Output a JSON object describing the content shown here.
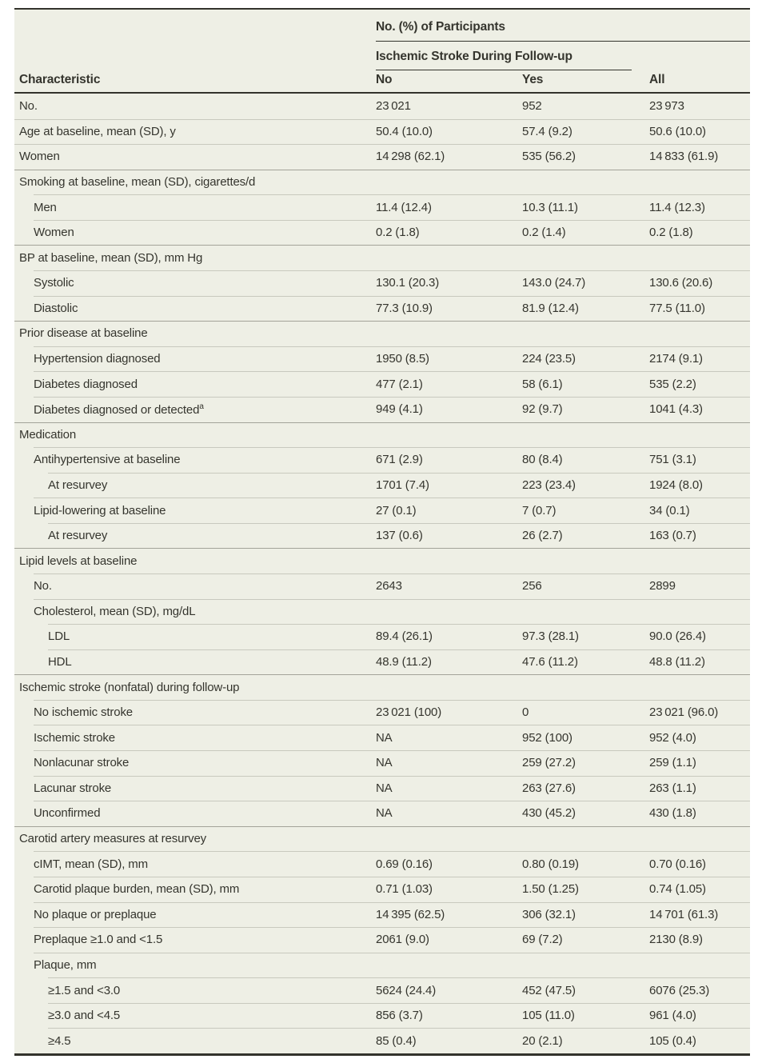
{
  "table": {
    "header": {
      "group_label": "No. (%) of Participants",
      "subgroup_label": "Ischemic Stroke During Follow-up",
      "characteristic_label": "Characteristic",
      "columns": [
        "No",
        "Yes",
        "All"
      ]
    },
    "rows": [
      {
        "label": "No.",
        "indent": 0,
        "section": false,
        "values": [
          "23 021",
          "952",
          "23 973"
        ]
      },
      {
        "label": "Age at baseline, mean (SD), y",
        "indent": 0,
        "section": false,
        "values": [
          "50.4 (10.0)",
          "57.4 (9.2)",
          "50.6 (10.0)"
        ]
      },
      {
        "label": "Women",
        "indent": 0,
        "section": false,
        "values": [
          "14 298 (62.1)",
          "535 (56.2)",
          "14 833 (61.9)"
        ]
      },
      {
        "label": "Smoking at baseline, mean (SD), cigarettes/d",
        "indent": 0,
        "section": true,
        "values": [
          "",
          "",
          ""
        ]
      },
      {
        "label": "Men",
        "indent": 1,
        "section": false,
        "values": [
          "11.4 (12.4)",
          "10.3 (11.1)",
          "11.4 (12.3)"
        ]
      },
      {
        "label": "Women",
        "indent": 1,
        "section": false,
        "values": [
          "0.2 (1.8)",
          "0.2 (1.4)",
          "0.2 (1.8)"
        ]
      },
      {
        "label": "BP at baseline, mean (SD), mm Hg",
        "indent": 0,
        "section": true,
        "values": [
          "",
          "",
          ""
        ]
      },
      {
        "label": "Systolic",
        "indent": 1,
        "section": false,
        "values": [
          "130.1 (20.3)",
          "143.0 (24.7)",
          "130.6 (20.6)"
        ]
      },
      {
        "label": "Diastolic",
        "indent": 1,
        "section": false,
        "values": [
          "77.3 (10.9)",
          "81.9 (12.4)",
          "77.5 (11.0)"
        ]
      },
      {
        "label": "Prior disease at baseline",
        "indent": 0,
        "section": true,
        "values": [
          "",
          "",
          ""
        ]
      },
      {
        "label": "Hypertension diagnosed",
        "indent": 1,
        "section": false,
        "values": [
          "1950 (8.5)",
          "224 (23.5)",
          "2174 (9.1)"
        ]
      },
      {
        "label": "Diabetes diagnosed",
        "indent": 1,
        "section": false,
        "values": [
          "477 (2.1)",
          "58 (6.1)",
          "535 (2.2)"
        ]
      },
      {
        "label": "Diabetes diagnosed or detected",
        "sup": "a",
        "indent": 1,
        "section": false,
        "values": [
          "949 (4.1)",
          "92 (9.7)",
          "1041 (4.3)"
        ]
      },
      {
        "label": "Medication",
        "indent": 0,
        "section": true,
        "values": [
          "",
          "",
          ""
        ]
      },
      {
        "label": "Antihypertensive at baseline",
        "indent": 1,
        "section": false,
        "values": [
          "671 (2.9)",
          "80 (8.4)",
          "751 (3.1)"
        ]
      },
      {
        "label": "At resurvey",
        "indent": 2,
        "section": false,
        "values": [
          "1701 (7.4)",
          "223 (23.4)",
          "1924 (8.0)"
        ]
      },
      {
        "label": "Lipid-lowering at baseline",
        "indent": 1,
        "section": false,
        "values": [
          "27 (0.1)",
          "7 (0.7)",
          "34 (0.1)"
        ]
      },
      {
        "label": "At resurvey",
        "indent": 2,
        "section": false,
        "values": [
          "137 (0.6)",
          "26 (2.7)",
          "163 (0.7)"
        ]
      },
      {
        "label": "Lipid levels at baseline",
        "indent": 0,
        "section": true,
        "values": [
          "",
          "",
          ""
        ]
      },
      {
        "label": "No.",
        "indent": 1,
        "section": false,
        "values": [
          "2643",
          "256",
          "2899"
        ]
      },
      {
        "label": "Cholesterol, mean (SD), mg/dL",
        "indent": 1,
        "section": false,
        "values": [
          "",
          "",
          ""
        ]
      },
      {
        "label": "LDL",
        "indent": 2,
        "section": false,
        "values": [
          "89.4 (26.1)",
          "97.3 (28.1)",
          "90.0 (26.4)"
        ]
      },
      {
        "label": "HDL",
        "indent": 2,
        "section": false,
        "values": [
          "48.9 (11.2)",
          "47.6 (11.2)",
          "48.8 (11.2)"
        ]
      },
      {
        "label": "Ischemic stroke (nonfatal) during follow-up",
        "indent": 0,
        "section": true,
        "values": [
          "",
          "",
          ""
        ]
      },
      {
        "label": "No ischemic stroke",
        "indent": 1,
        "section": false,
        "values": [
          "23 021 (100)",
          "0",
          "23 021 (96.0)"
        ]
      },
      {
        "label": "Ischemic stroke",
        "indent": 1,
        "section": false,
        "values": [
          "NA",
          "952 (100)",
          "952 (4.0)"
        ]
      },
      {
        "label": "Nonlacunar stroke",
        "indent": 1,
        "section": false,
        "values": [
          "NA",
          "259 (27.2)",
          "259 (1.1)"
        ]
      },
      {
        "label": "Lacunar stroke",
        "indent": 1,
        "section": false,
        "values": [
          "NA",
          "263 (27.6)",
          "263 (1.1)"
        ]
      },
      {
        "label": "Unconfirmed",
        "indent": 1,
        "section": false,
        "values": [
          "NA",
          "430 (45.2)",
          "430 (1.8)"
        ]
      },
      {
        "label": "Carotid artery measures at resurvey",
        "indent": 0,
        "section": true,
        "values": [
          "",
          "",
          ""
        ]
      },
      {
        "label": "cIMT, mean (SD), mm",
        "indent": 1,
        "section": false,
        "values": [
          "0.69 (0.16)",
          "0.80 (0.19)",
          "0.70 (0.16)"
        ]
      },
      {
        "label": "Carotid plaque burden, mean (SD), mm",
        "indent": 1,
        "section": false,
        "values": [
          "0.71 (1.03)",
          "1.50 (1.25)",
          "0.74 (1.05)"
        ]
      },
      {
        "label": "No plaque or preplaque",
        "indent": 1,
        "section": false,
        "values": [
          "14 395 (62.5)",
          "306 (32.1)",
          "14 701 (61.3)"
        ]
      },
      {
        "label": "Preplaque ≥1.0 and <1.5",
        "indent": 1,
        "section": false,
        "values": [
          "2061 (9.0)",
          "69 (7.2)",
          "2130 (8.9)"
        ]
      },
      {
        "label": "Plaque, mm",
        "indent": 1,
        "section": false,
        "values": [
          "",
          "",
          ""
        ]
      },
      {
        "label": "≥1.5 and <3.0",
        "indent": 2,
        "section": false,
        "values": [
          "5624 (24.4)",
          "452 (47.5)",
          "6076 (25.3)"
        ]
      },
      {
        "label": "≥3.0 and <4.5",
        "indent": 2,
        "section": false,
        "values": [
          "856 (3.7)",
          "105 (11.0)",
          "961 (4.0)"
        ]
      },
      {
        "label": "≥4.5",
        "indent": 2,
        "section": false,
        "values": [
          "85 (0.4)",
          "20 (2.1)",
          "105 (0.4)"
        ]
      }
    ]
  },
  "colors": {
    "table_background": "#EEEFE5",
    "text": "#35352E",
    "heavy_rule": "#33332C",
    "light_rule": "#C8C9BE",
    "section_rule": "#A3A399",
    "page_background": "#FFFFFF"
  }
}
